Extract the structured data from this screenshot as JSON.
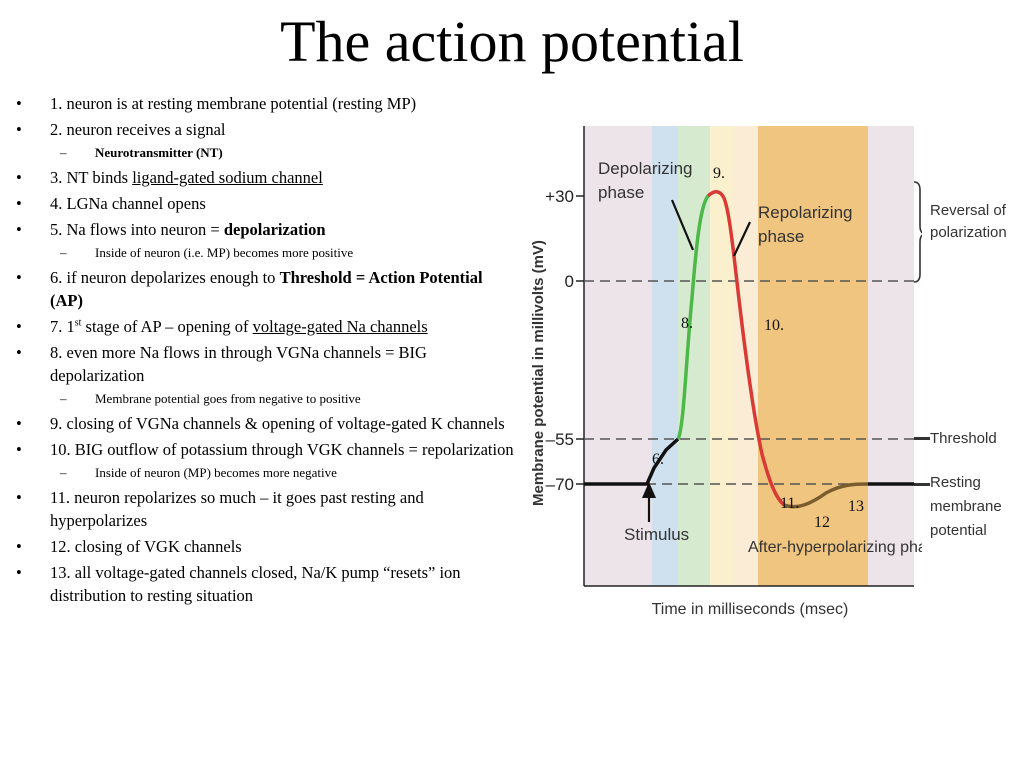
{
  "title": "The action potential",
  "bullets": [
    {
      "level": 1,
      "parts": [
        {
          "t": "1. neuron is at resting membrane potential (resting MP)"
        }
      ]
    },
    {
      "level": 1,
      "parts": [
        {
          "t": "2. neuron receives a signal"
        }
      ]
    },
    {
      "level": 2,
      "parts": [
        {
          "t": "Neurotransmitter (NT)",
          "b": true
        }
      ]
    },
    {
      "level": 1,
      "parts": [
        {
          "t": "3. NT binds "
        },
        {
          "t": "ligand-gated sodium channel",
          "u": true
        }
      ]
    },
    {
      "level": 1,
      "parts": [
        {
          "t": "4. LGNa channel opens"
        }
      ]
    },
    {
      "level": 1,
      "parts": [
        {
          "t": "5. Na flows into neuron = "
        },
        {
          "t": "depolarization",
          "b": true
        }
      ]
    },
    {
      "level": 2,
      "parts": [
        {
          "t": "Inside of neuron (i.e. MP) becomes more positive"
        }
      ]
    },
    {
      "level": 1,
      "parts": [
        {
          "t": "6. if neuron depolarizes enough to "
        },
        {
          "t": "Threshold = Action Potential (AP)",
          "b": true
        }
      ]
    },
    {
      "level": 1,
      "parts": [
        {
          "t": "7. 1"
        },
        {
          "t": "st",
          "sup": true
        },
        {
          "t": " stage of AP – opening of "
        },
        {
          "t": "voltage-gated Na channels",
          "u": true
        }
      ]
    },
    {
      "level": 1,
      "parts": [
        {
          "t": "8. even more Na flows in through VGNa channels = BIG depolarization"
        }
      ]
    },
    {
      "level": 2,
      "parts": [
        {
          "t": "Membrane potential goes from negative to positive"
        }
      ]
    },
    {
      "level": 1,
      "parts": [
        {
          "t": "9. closing of VGNa channels & opening of voltage-gated K channels"
        }
      ]
    },
    {
      "level": 1,
      "parts": [
        {
          "t": "10. BIG outflow of potassium through VGK channels = repolarization"
        }
      ]
    },
    {
      "level": 2,
      "parts": [
        {
          "t": "Inside of neuron (MP) becomes more negative"
        }
      ]
    },
    {
      "level": 1,
      "parts": [
        {
          "t": "11. neuron repolarizes so much – it goes past resting and hyperpolarizes"
        }
      ]
    },
    {
      "level": 1,
      "parts": [
        {
          "t": "12. closing of VGK channels"
        }
      ]
    },
    {
      "level": 1,
      "parts": [
        {
          "t": "13. all voltage-gated channels closed, Na/K pump “resets” ion distribution to resting situation"
        }
      ]
    }
  ],
  "diagram": {
    "y_axis_label": "Membrane potential in millivolts (mV)",
    "x_axis_label": "Time in milliseconds (msec)",
    "ticks": [
      "+30",
      "0",
      "–55",
      "–70"
    ],
    "phase_labels": {
      "depolarizing_1": "Depolarizing",
      "depolarizing_2": "phase",
      "repolarizing_1": "Repolarizing",
      "repolarizing_2": "phase",
      "after_hyper": "After-hyperpolarizing phase",
      "stimulus": "Stimulus"
    },
    "right_labels": {
      "reversal_1": "Reversal of",
      "reversal_2": "polarization",
      "threshold": "Threshold",
      "resting_1": "Resting",
      "resting_2": "membrane",
      "resting_3": "potential"
    },
    "step_labels": {
      "s6": "6.",
      "s8": "8.",
      "s9": "9.",
      "s10": "10.",
      "s11": "11.",
      "s12": "12",
      "s13": "13"
    },
    "colors": {
      "background": "#ede4ea",
      "stimulus_band": "#cfe0ef",
      "depolarizing_band": "#d6ead0",
      "peak_band": "#fbf0cd",
      "repolarizing_band": "#faecd5",
      "after_hyper_band": "#f0c57f",
      "resting_curve": "#111111",
      "depolarizing_curve": "#4cb848",
      "repolarizing_curve": "#d93a35",
      "after_hyper_curve": "#7a5c2e",
      "dashed_line": "#555555"
    }
  }
}
